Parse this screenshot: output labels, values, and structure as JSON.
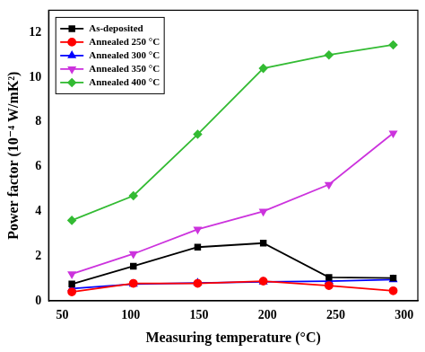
{
  "chart_data": {
    "type": "line",
    "x_label": "Measuring temperature (°C)",
    "y_label": "Power factor (10⁻⁴ W/mK²)",
    "x": [
      57,
      102,
      149,
      197,
      245,
      292
    ],
    "series": [
      {
        "name": "As-deposited",
        "color": "#000000",
        "marker": "square",
        "values": [
          0.75,
          1.55,
          2.4,
          2.58,
          1.05,
          1.02
        ]
      },
      {
        "name": "Annealed 250 °C",
        "color": "#ff0000",
        "marker": "circle",
        "values": [
          0.4,
          0.78,
          0.78,
          0.88,
          0.68,
          0.45
        ]
      },
      {
        "name": "Annealed 300 °C",
        "color": "#0000ff",
        "marker": "triangle",
        "values": [
          0.55,
          0.75,
          0.8,
          0.85,
          0.88,
          0.95
        ]
      },
      {
        "name": "Annealed 350 °C",
        "color": "#cc33dd",
        "marker": "triangle_down",
        "values": [
          1.2,
          2.1,
          3.2,
          4.0,
          5.2,
          7.5
        ]
      },
      {
        "name": "Annealed 400 °C",
        "color": "#33bb33",
        "marker": "diamond",
        "values": [
          3.6,
          4.7,
          7.45,
          10.4,
          11.0,
          11.45
        ]
      }
    ],
    "xlim": [
      40,
      310
    ],
    "xticks": [
      50,
      100,
      150,
      200,
      250,
      300
    ],
    "ylim": [
      0,
      13
    ],
    "yticks": [
      0,
      2,
      4,
      6,
      8,
      10,
      12
    ],
    "grid": false,
    "legend": "upper left"
  }
}
